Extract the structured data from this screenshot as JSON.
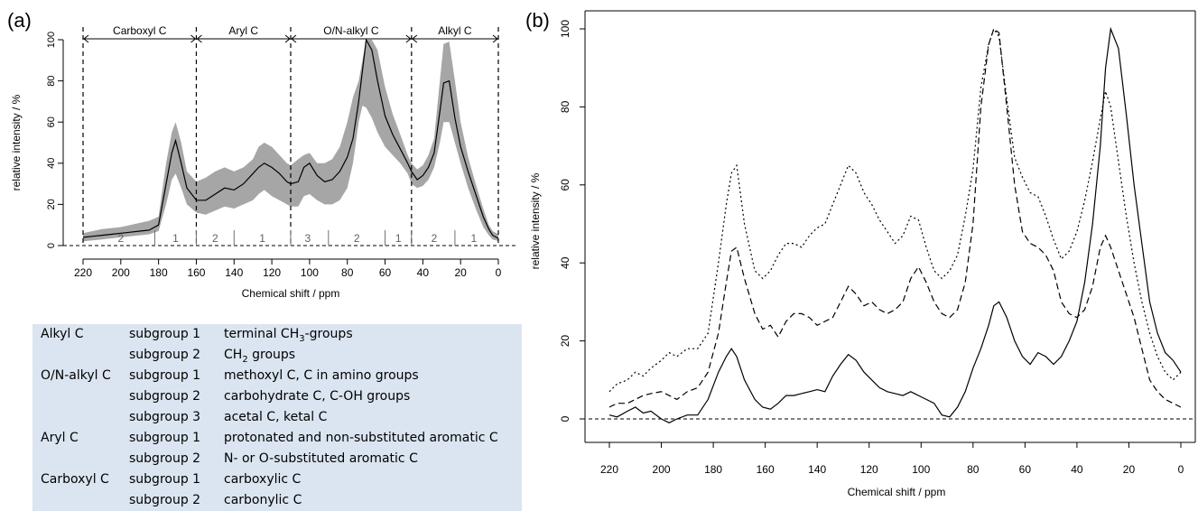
{
  "panel_a": {
    "label": "(a)",
    "regions": [
      "Carboxyl C",
      "Aryl C",
      "O/N-alkyl C",
      "Alkyl C"
    ],
    "region_bounds": [
      220,
      160,
      110,
      46,
      0
    ],
    "subgroup_marks": [
      {
        "text": "2",
        "x": 200
      },
      {
        "text": "1",
        "x": 171
      },
      {
        "text": "2",
        "x": 150
      },
      {
        "text": "1",
        "x": 125
      },
      {
        "text": "3",
        "x": 101
      },
      {
        "text": "2",
        "x": 75
      },
      {
        "text": "1",
        "x": 53
      },
      {
        "text": "2",
        "x": 34
      },
      {
        "text": "1",
        "x": 13
      }
    ],
    "subgroup_dividers": [
      182,
      160,
      140,
      110,
      90,
      60,
      46,
      23
    ]
  },
  "panel_b": {
    "label": "(b)"
  },
  "chart_data": [
    {
      "type": "area",
      "xlabel": "Chemical shift / ppm",
      "ylabel": "relative intensity / %",
      "xlim": [
        220,
        0
      ],
      "ylim": [
        0,
        100
      ],
      "xticks": [
        220,
        200,
        180,
        160,
        140,
        120,
        100,
        80,
        60,
        40,
        20,
        0
      ],
      "yticks": [
        0,
        20,
        40,
        60,
        80,
        100
      ],
      "x": [
        220,
        215,
        210,
        205,
        200,
        195,
        190,
        185,
        180,
        176,
        173,
        171,
        168,
        165,
        160,
        155,
        150,
        145,
        140,
        135,
        130,
        127,
        124,
        120,
        116,
        112,
        110,
        106,
        103,
        100,
        96,
        92,
        88,
        84,
        80,
        77,
        74,
        72,
        70,
        67,
        64,
        60,
        56,
        52,
        48,
        46,
        43,
        40,
        37,
        34,
        31,
        29,
        26,
        23,
        20,
        16,
        12,
        8,
        5,
        3,
        1,
        0
      ],
      "series": [
        {
          "name": "",
          "color": "#000000",
          "values": [
            4,
            4.5,
            5,
            5.5,
            6,
            6.5,
            7,
            7.5,
            10,
            30,
            45,
            51,
            40,
            28,
            22,
            22,
            25,
            28,
            27,
            30,
            35,
            38,
            40,
            38,
            35,
            31,
            30,
            31,
            38,
            40,
            34,
            31,
            32,
            36,
            43,
            52,
            70,
            85,
            100,
            95,
            80,
            63,
            54,
            47,
            40,
            36,
            32,
            34,
            38,
            45,
            65,
            79,
            80,
            62,
            48,
            36,
            25,
            14,
            8,
            5,
            4,
            3.5
          ]
        },
        {
          "name": "",
          "color": "#a6a6a6",
          "role": "range-lower",
          "values": [
            2,
            2.5,
            3,
            3.5,
            4,
            4.5,
            5,
            5.5,
            7,
            20,
            32,
            35,
            28,
            20,
            16,
            15,
            17,
            19,
            18,
            20,
            22,
            25,
            27,
            24,
            22,
            20,
            19,
            19,
            24,
            25,
            22,
            20,
            20,
            22,
            28,
            40,
            60,
            68,
            67,
            62,
            55,
            48,
            44,
            40,
            35,
            30,
            28,
            29,
            32,
            38,
            50,
            60,
            60,
            50,
            40,
            28,
            18,
            9,
            5,
            3,
            2.5,
            2
          ]
        },
        {
          "name": "",
          "color": "#a6a6a6",
          "role": "range-upper",
          "values": [
            6,
            7,
            8,
            8.5,
            9,
            10,
            11,
            12,
            14,
            40,
            55,
            60,
            50,
            36,
            31,
            33,
            36,
            38,
            36,
            38,
            42,
            48,
            50,
            48,
            44,
            40,
            39,
            42,
            44,
            45,
            40,
            40,
            42,
            48,
            60,
            72,
            80,
            90,
            100,
            100,
            95,
            77,
            64,
            54,
            44,
            40,
            37,
            39,
            44,
            52,
            80,
            98,
            99,
            80,
            60,
            43,
            30,
            18,
            10,
            7,
            6,
            5.5
          ]
        }
      ]
    },
    {
      "type": "line",
      "xlabel": "Chemical shift / ppm",
      "ylabel": "relative intensity / %",
      "xlim": [
        220,
        0
      ],
      "ylim": [
        0,
        100
      ],
      "xticks": [
        220,
        200,
        180,
        160,
        140,
        120,
        100,
        80,
        60,
        40,
        20,
        0
      ],
      "yticks": [
        0,
        20,
        40,
        60,
        80,
        100
      ],
      "x": [
        220,
        217,
        213,
        210,
        207,
        204,
        200,
        197,
        194,
        190,
        186,
        182,
        178,
        175,
        173,
        171,
        168,
        164,
        161,
        158,
        155,
        152,
        149,
        146,
        143,
        140,
        137,
        134,
        131,
        128,
        125,
        122,
        119,
        116,
        113,
        110,
        107,
        104,
        101,
        98,
        95,
        92,
        89,
        86,
        83,
        80,
        77,
        74,
        72,
        70,
        67,
        64,
        61,
        58,
        55,
        52,
        49,
        46,
        43,
        40,
        37,
        34,
        31,
        29,
        27,
        24,
        21,
        18,
        15,
        12,
        9,
        6,
        3,
        0
      ],
      "series": [
        {
          "name": "",
          "style": "solid",
          "values": [
            1,
            0.5,
            2,
            3,
            1.5,
            2,
            0,
            -1,
            0,
            1,
            1,
            5,
            12,
            16,
            18,
            16,
            10,
            5,
            3,
            2.5,
            4,
            6,
            6,
            6.5,
            7,
            7.5,
            7,
            11,
            14,
            16.5,
            15,
            12,
            10,
            8,
            7,
            6.5,
            6,
            7,
            6,
            5,
            4,
            1,
            0.5,
            3,
            7,
            13,
            18,
            24,
            29,
            30,
            26,
            20,
            16,
            14,
            17,
            16,
            14,
            16,
            20,
            25,
            35,
            50,
            70,
            90,
            100,
            95,
            78,
            60,
            45,
            30,
            22,
            17,
            15,
            12
          ]
        },
        {
          "name": "",
          "style": "dashed",
          "values": [
            3,
            4,
            4,
            5,
            6,
            6.5,
            7,
            6,
            5,
            7,
            8,
            12,
            22,
            35,
            43,
            44,
            36,
            27,
            23,
            24,
            21,
            25,
            27,
            27,
            26,
            24,
            25,
            26,
            30,
            34,
            32,
            29,
            30,
            28,
            27,
            28,
            30,
            36,
            39,
            35,
            30,
            27,
            26,
            28,
            35,
            50,
            80,
            96,
            100,
            99,
            80,
            60,
            48,
            45,
            44,
            42,
            38,
            30,
            27,
            26,
            28,
            34,
            44,
            47,
            44,
            38,
            32,
            26,
            18,
            10,
            7,
            5,
            4,
            3
          ]
        },
        {
          "name": "",
          "style": "dotted",
          "values": [
            7,
            9,
            10,
            12,
            11,
            13,
            15,
            17,
            16,
            18,
            18,
            22,
            40,
            55,
            63,
            65,
            50,
            38,
            36,
            38,
            42,
            45,
            45,
            44,
            47,
            49,
            50,
            55,
            60,
            65,
            63,
            58,
            55,
            51,
            48,
            45,
            47,
            52,
            51,
            44,
            38,
            36,
            38,
            42,
            52,
            64,
            85,
            96,
            100,
            98,
            82,
            67,
            62,
            58,
            57,
            52,
            46,
            41,
            43,
            48,
            56,
            66,
            77,
            84,
            80,
            66,
            52,
            40,
            30,
            22,
            16,
            12,
            10,
            12
          ]
        }
      ]
    }
  ],
  "legend_table": {
    "rows": [
      {
        "group": "Alkyl C",
        "subgroup": "subgroup 1",
        "desc_pre": "terminal CH",
        "desc_sub": "3",
        "desc_post": "-groups"
      },
      {
        "group": "",
        "subgroup": "subgroup 2",
        "desc_pre": "CH",
        "desc_sub": "2",
        "desc_post": " groups"
      },
      {
        "group": "O/N-alkyl C",
        "subgroup": "subgroup 1",
        "desc_pre": "methoxyl C, C in amino groups",
        "desc_sub": "",
        "desc_post": ""
      },
      {
        "group": "",
        "subgroup": "subgroup 2",
        "desc_pre": "carbohydrate C, C-OH groups",
        "desc_sub": "",
        "desc_post": ""
      },
      {
        "group": "",
        "subgroup": "subgroup 3",
        "desc_pre": "acetal C, ketal C",
        "desc_sub": "",
        "desc_post": ""
      },
      {
        "group": "Aryl C",
        "subgroup": "subgroup 1",
        "desc_pre": "protonated and non-substituted aromatic C",
        "desc_sub": "",
        "desc_post": ""
      },
      {
        "group": "",
        "subgroup": "subgroup 2",
        "desc_pre": "N- or O-substituted aromatic C",
        "desc_sub": "",
        "desc_post": ""
      },
      {
        "group": "Carboxyl C",
        "subgroup": "subgroup 1",
        "desc_pre": "carboxylic C",
        "desc_sub": "",
        "desc_post": ""
      },
      {
        "group": "",
        "subgroup": "subgroup 2",
        "desc_pre": "carbonylic C",
        "desc_sub": "",
        "desc_post": ""
      }
    ]
  }
}
